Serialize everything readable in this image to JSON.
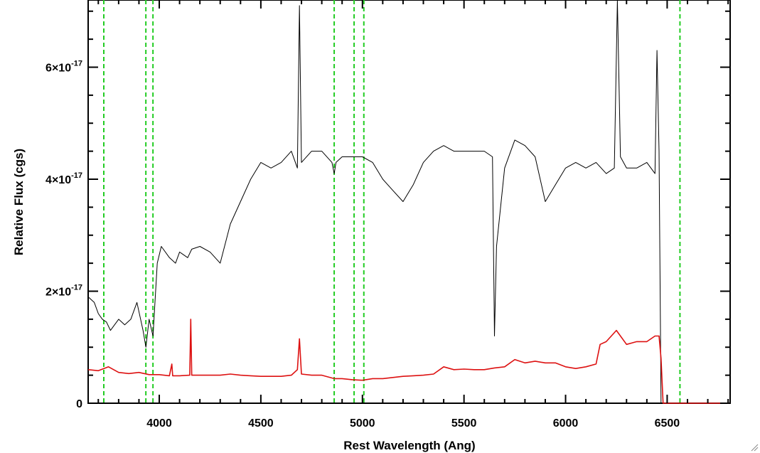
{
  "chart_data": {
    "type": "line",
    "xlabel": "Rest Wavelength (Ang)",
    "ylabel": "Relative Flux (cgs)",
    "xlim": [
      3650,
      6810
    ],
    "ylim": [
      0,
      7.2e-17
    ],
    "x_ticks": [
      4000,
      4500,
      5000,
      5500,
      6000,
      6500
    ],
    "x_tick_labels": [
      "4000",
      "4500",
      "5000",
      "5500",
      "6000",
      "6500"
    ],
    "y_ticks": [
      0,
      2e-17,
      4e-17,
      6e-17
    ],
    "y_tick_labels": [
      {
        "mantissa": "0",
        "exponent": ""
      },
      {
        "mantissa": "2×10",
        "exponent": "-17"
      },
      {
        "mantissa": "4×10",
        "exponent": "-17"
      },
      {
        "mantissa": "6×10",
        "exponent": "-17"
      }
    ],
    "grid": false,
    "reference_lines": {
      "color": "#22cc22",
      "style": "dashed",
      "x": [
        3727,
        3934,
        3969,
        4861,
        4959,
        5007,
        6563
      ]
    },
    "series": [
      {
        "color": "#000000",
        "x": [
          3650,
          3680,
          3700,
          3720,
          3740,
          3760,
          3780,
          3800,
          3830,
          3860,
          3890,
          3920,
          3934,
          3950,
          3969,
          3990,
          4010,
          4050,
          4080,
          4100,
          4140,
          4160,
          4200,
          4250,
          4300,
          4350,
          4400,
          4450,
          4500,
          4550,
          4600,
          4650,
          4680,
          4690,
          4700,
          4750,
          4800,
          4850,
          4861,
          4870,
          4900,
          4950,
          5000,
          5050,
          5100,
          5150,
          5200,
          5250,
          5300,
          5350,
          5400,
          5450,
          5500,
          5550,
          5600,
          5640,
          5650,
          5660,
          5680,
          5700,
          5750,
          5800,
          5850,
          5900,
          5950,
          6000,
          6050,
          6100,
          6150,
          6200,
          6240,
          6255,
          6270,
          6300,
          6350,
          6400,
          6440,
          6450,
          6460,
          6470
        ],
        "y": [
          1.9e-17,
          1.8e-17,
          1.6e-17,
          1.5e-17,
          1.45e-17,
          1.3e-17,
          1.4e-17,
          1.5e-17,
          1.4e-17,
          1.5e-17,
          1.8e-17,
          1.3e-17,
          1e-17,
          1.5e-17,
          1.2e-17,
          2.5e-17,
          2.8e-17,
          2.6e-17,
          2.5e-17,
          2.7e-17,
          2.6e-17,
          2.75e-17,
          2.8e-17,
          2.7e-17,
          2.5e-17,
          3.2e-17,
          3.6e-17,
          4e-17,
          4.3e-17,
          4.2e-17,
          4.3e-17,
          4.5e-17,
          4.2e-17,
          7.1e-17,
          4.3e-17,
          4.5e-17,
          4.5e-17,
          4.3e-17,
          4.1e-17,
          4.3e-17,
          4.4e-17,
          4.4e-17,
          4.4e-17,
          4.3e-17,
          4e-17,
          3.8e-17,
          3.6e-17,
          3.9e-17,
          4.3e-17,
          4.5e-17,
          4.6e-17,
          4.5e-17,
          4.5e-17,
          4.5e-17,
          4.5e-17,
          4.4e-17,
          1.2e-17,
          2.8e-17,
          3.5e-17,
          4.2e-17,
          4.7e-17,
          4.6e-17,
          4.4e-17,
          3.6e-17,
          3.9e-17,
          4.2e-17,
          4.3e-17,
          4.2e-17,
          4.3e-17,
          4.1e-17,
          4.2e-17,
          7.2e-17,
          4.4e-17,
          4.2e-17,
          4.2e-17,
          4.3e-17,
          4.1e-17,
          6.3e-17,
          4.5e-17,
          0
        ]
      },
      {
        "color": "#dd1111",
        "x": [
          3650,
          3700,
          3750,
          3800,
          3850,
          3900,
          3950,
          4000,
          4050,
          4062,
          4066,
          4100,
          4150,
          4155,
          4160,
          4200,
          4250,
          4300,
          4350,
          4400,
          4450,
          4500,
          4550,
          4600,
          4650,
          4680,
          4690,
          4700,
          4750,
          4800,
          4861,
          4900,
          4950,
          5000,
          5050,
          5100,
          5150,
          5200,
          5250,
          5300,
          5350,
          5400,
          5450,
          5500,
          5550,
          5600,
          5650,
          5700,
          5750,
          5800,
          5850,
          5900,
          5950,
          6000,
          6050,
          6100,
          6150,
          6170,
          6200,
          6250,
          6300,
          6350,
          6400,
          6440,
          6460,
          6470,
          6480,
          6810
        ],
        "y": [
          6e-18,
          5.8e-18,
          6.5e-18,
          5.5e-18,
          5.3e-18,
          5.5e-18,
          5.1e-18,
          5.1e-18,
          4.9e-18,
          7e-18,
          4.9e-18,
          4.9e-18,
          5e-18,
          1.5e-17,
          5e-18,
          5e-18,
          5e-18,
          5e-18,
          5.2e-18,
          5e-18,
          4.9e-18,
          4.8e-18,
          4.8e-18,
          4.8e-18,
          5e-18,
          6e-18,
          1.15e-17,
          5.2e-18,
          5e-18,
          5e-18,
          4.4e-18,
          4.4e-18,
          4.2e-18,
          4.1e-18,
          4.4e-18,
          4.4e-18,
          4.6e-18,
          4.8e-18,
          4.9e-18,
          5e-18,
          5.2e-18,
          6.5e-18,
          6e-18,
          6.1e-18,
          6e-18,
          6e-18,
          6.3e-18,
          6.5e-18,
          7.8e-18,
          7.2e-18,
          7.5e-18,
          7.2e-18,
          7.2e-18,
          6.5e-18,
          6.2e-18,
          6.5e-18,
          7e-18,
          1.05e-17,
          1.1e-17,
          1.3e-17,
          1.05e-17,
          1.1e-17,
          1.1e-17,
          1.2e-17,
          1.2e-17,
          8e-18,
          0,
          0
        ]
      }
    ]
  }
}
